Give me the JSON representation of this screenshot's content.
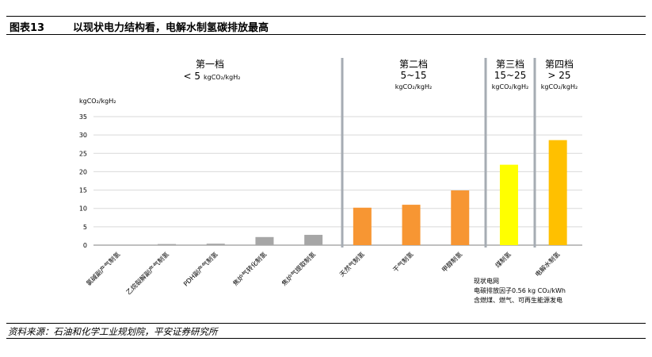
{
  "figure": {
    "label": "图表13",
    "title": "以现状电力结构看，电解水制氢碳排放最高",
    "source": "资料来源：石油和化学工业规划院，平安证券研究所"
  },
  "tiers": [
    {
      "name": "第一档",
      "range": "< 5",
      "unit": "kgCO₂/kgH₂"
    },
    {
      "name": "第二档",
      "range": "5~15",
      "unit": "kgCO₂/kgH₂"
    },
    {
      "name": "第三档",
      "range": "15~25",
      "unit": "kgCO₂/kgH₂"
    },
    {
      "name": "第四档",
      "range": "> 25",
      "unit": "kgCO₂/kgH₂"
    }
  ],
  "note": {
    "lines": [
      "现状电网",
      "电碳排放因子0.56 kg CO₂/kWh",
      "含燃煤、燃气、可再生能源发电"
    ]
  },
  "colors": {
    "gray": "#a6a6a6",
    "orange": "#f79633",
    "yellow": "#ffff00",
    "gold": "#ffc000",
    "divider": "#a6acb3"
  },
  "chart_data": {
    "type": "bar",
    "ylabel": "kgCO₂/kgH₂",
    "ylim": [
      0,
      35
    ],
    "yticks": [
      0,
      5,
      10,
      15,
      20,
      25,
      30,
      35
    ],
    "grid": true,
    "categories": [
      "氯碱副产气制氢",
      "乙烷裂解副产气制氢",
      "PDH副产气制氢",
      "焦炉气转化制氢",
      "焦炉气提取制氢",
      "天然气制氢",
      "干气制氢",
      "甲醇制氢",
      "煤制氢",
      "电解水制氢"
    ],
    "values": [
      0,
      0.3,
      0.4,
      2.2,
      2.8,
      10.2,
      11,
      14.9,
      21.9,
      28.6
    ],
    "bar_colors": [
      "#a6a6a6",
      "#a6a6a6",
      "#a6a6a6",
      "#a6a6a6",
      "#a6a6a6",
      "#f79633",
      "#f79633",
      "#f79633",
      "#ffff00",
      "#ffc000"
    ]
  }
}
